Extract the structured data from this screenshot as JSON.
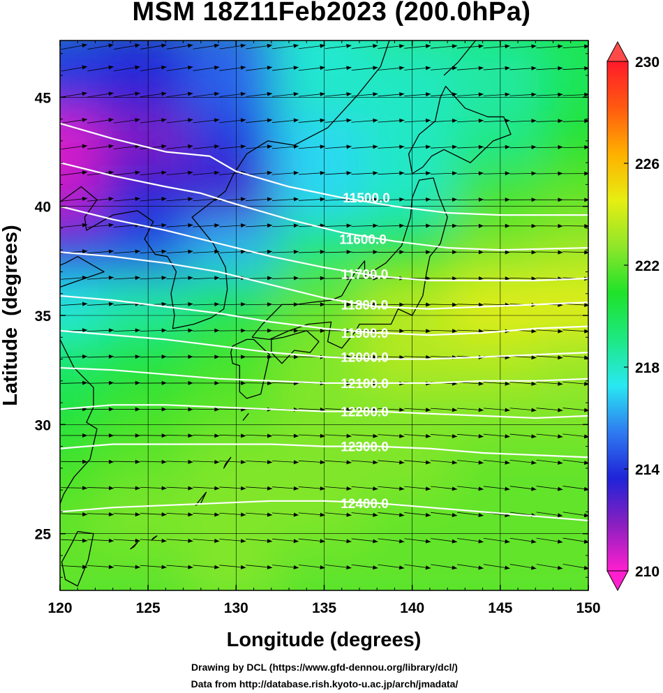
{
  "title": "MSM 18Z11Feb2023 (200.0hPa)",
  "credits": {
    "line1": "Drawing by DCL (https://www.gfd-dennou.org/library/dcl/)",
    "line2": "Data from http://database.rish.kyoto-u.ac.jp/arch/jmadata/"
  },
  "chart_data": {
    "type": "heatmap",
    "title": "MSM 18Z11Feb2023 (200.0hPa)",
    "xlabel": "Longitude (degrees)",
    "ylabel": "Latitude  (degrees)",
    "xlim": [
      120,
      150
    ],
    "ylim": [
      22.4,
      47.6
    ],
    "xticks": [
      {
        "value": 120,
        "label": "120"
      },
      {
        "value": 125,
        "label": "125"
      },
      {
        "value": 130,
        "label": "130"
      },
      {
        "value": 135,
        "label": "135"
      },
      {
        "value": 140,
        "label": "140"
      },
      {
        "value": 145,
        "label": "145"
      },
      {
        "value": 150,
        "label": "150"
      }
    ],
    "yticks": [
      {
        "value": 25,
        "label": "25"
      },
      {
        "value": 30,
        "label": "30"
      },
      {
        "value": 35,
        "label": "35"
      },
      {
        "value": 40,
        "label": "40"
      },
      {
        "value": 45,
        "label": "45"
      }
    ],
    "colorbar": {
      "range": [
        210,
        230
      ],
      "ticks": [
        {
          "value": 210,
          "label": "210"
        },
        {
          "value": 214,
          "label": "214"
        },
        {
          "value": 218,
          "label": "218"
        },
        {
          "value": 222,
          "label": "222"
        },
        {
          "value": 226,
          "label": "226"
        },
        {
          "value": 230,
          "label": "230"
        }
      ],
      "colors": [
        "#ff1fcf",
        "#8a1fc0",
        "#1f23d8",
        "#2f7bf0",
        "#29e8f2",
        "#1de882",
        "#1fe22a",
        "#8fe62a",
        "#e6ee12",
        "#ffb000",
        "#ff5a10",
        "#ff1a2a"
      ]
    },
    "shading_sample": {
      "lon": [
        120,
        125,
        130,
        135,
        140,
        145,
        150
      ],
      "lat": [
        47,
        45,
        42.5,
        40,
        37.5,
        35,
        32.5,
        30,
        27.5,
        25,
        23
      ],
      "values": [
        [
          214.5,
          214.0,
          215.0,
          217.5,
          218.5,
          219.0,
          220.0
        ],
        [
          214.0,
          213.5,
          215.0,
          218.0,
          218.0,
          218.5,
          220.0
        ],
        [
          210.5,
          212.0,
          214.0,
          217.0,
          218.0,
          219.0,
          221.0
        ],
        [
          211.0,
          213.5,
          213.0,
          217.0,
          218.0,
          221.5,
          222.0
        ],
        [
          214.0,
          214.5,
          216.5,
          219.5,
          221.0,
          222.5,
          223.0
        ],
        [
          217.5,
          218.5,
          220.0,
          222.0,
          223.5,
          224.5,
          224.5
        ],
        [
          219.5,
          220.5,
          221.5,
          222.5,
          223.5,
          223.5,
          223.0
        ],
        [
          220.5,
          221.5,
          222.0,
          222.5,
          222.5,
          222.5,
          222.5
        ],
        [
          221.5,
          222.0,
          222.5,
          222.5,
          222.5,
          222.0,
          222.0
        ],
        [
          222.0,
          222.5,
          222.5,
          222.5,
          222.0,
          222.0,
          222.0
        ],
        [
          222.0,
          222.0,
          222.5,
          222.0,
          222.0,
          222.0,
          222.0
        ]
      ]
    },
    "contours": [
      {
        "label": "11500.0",
        "label_lon": 137.4,
        "label_lat": 40.4,
        "lon": [
          120,
          123,
          126,
          128.5,
          130,
          133,
          136,
          139,
          142,
          145,
          150
        ],
        "lat": [
          43.8,
          43.1,
          42.5,
          42.3,
          41.6,
          40.9,
          40.4,
          40.0,
          39.7,
          39.6,
          39.6
        ]
      },
      {
        "label": "11600.0",
        "label_lon": 137.2,
        "label_lat": 38.5,
        "lon": [
          120,
          123,
          126,
          128,
          130,
          133,
          136,
          139,
          142,
          145,
          150
        ],
        "lat": [
          42.0,
          41.4,
          40.9,
          40.6,
          40.1,
          39.4,
          38.8,
          38.4,
          38.1,
          38.0,
          38.1
        ]
      },
      {
        "label": "11700.0",
        "label_lon": 137.3,
        "label_lat": 36.9,
        "lon": [
          120,
          123,
          126,
          129,
          132,
          135,
          138,
          141,
          144,
          147,
          150
        ],
        "lat": [
          40.0,
          39.4,
          38.9,
          38.3,
          37.7,
          37.2,
          36.8,
          36.6,
          36.6,
          36.6,
          36.7
        ]
      },
      {
        "label": "11800.0",
        "label_lon": 137.3,
        "label_lat": 35.5,
        "lon": [
          120,
          123,
          126,
          129,
          132,
          135,
          138,
          141,
          144,
          147,
          150
        ],
        "lat": [
          37.9,
          37.7,
          37.4,
          37.0,
          36.4,
          35.8,
          35.4,
          35.3,
          35.4,
          35.5,
          35.6
        ]
      },
      {
        "label": "11900.0",
        "label_lon": 137.3,
        "label_lat": 34.2,
        "lon": [
          120,
          123,
          126,
          129,
          132,
          135,
          138,
          141,
          144,
          147,
          150
        ],
        "lat": [
          35.9,
          35.7,
          35.4,
          35.1,
          34.7,
          34.4,
          34.2,
          34.1,
          34.2,
          34.4,
          34.5
        ]
      },
      {
        "label": "12000.0",
        "label_lon": 137.3,
        "label_lat": 33.1,
        "lon": [
          120,
          123,
          126,
          129,
          132,
          135,
          138,
          141,
          144,
          147,
          150
        ],
        "lat": [
          34.3,
          34.1,
          33.9,
          33.6,
          33.3,
          33.1,
          33.0,
          33.0,
          33.1,
          33.2,
          33.3
        ]
      },
      {
        "label": "12100.0",
        "label_lon": 137.3,
        "label_lat": 31.9,
        "lon": [
          120,
          123,
          126,
          129,
          132,
          135,
          138,
          141,
          144,
          147,
          150
        ],
        "lat": [
          32.6,
          32.5,
          32.3,
          32.1,
          32.0,
          31.9,
          31.9,
          31.9,
          32.0,
          32.0,
          32.1
        ]
      },
      {
        "label": "12200.0",
        "label_lon": 137.3,
        "label_lat": 30.6,
        "lon": [
          120,
          123,
          126,
          129,
          132,
          135,
          138,
          141,
          144,
          147,
          150
        ],
        "lat": [
          30.7,
          30.9,
          30.9,
          30.8,
          30.7,
          30.6,
          30.6,
          30.5,
          30.4,
          30.3,
          30.4
        ]
      },
      {
        "label": "12300.0",
        "label_lon": 137.3,
        "label_lat": 29.0,
        "lon": [
          120,
          123,
          126,
          129,
          132,
          135,
          138,
          141,
          144,
          147,
          150
        ],
        "lat": [
          28.9,
          29.1,
          29.1,
          29.1,
          29.1,
          29.0,
          29.0,
          28.9,
          28.7,
          28.6,
          28.5
        ]
      },
      {
        "label": "12400.0",
        "label_lon": 137.3,
        "label_lat": 26.4,
        "lon": [
          120,
          123,
          126,
          129,
          132,
          135,
          138,
          141,
          144,
          147,
          150
        ],
        "lat": [
          26.0,
          26.2,
          26.3,
          26.4,
          26.5,
          26.5,
          26.4,
          26.2,
          26.0,
          25.8,
          25.6
        ]
      }
    ],
    "wind_vectors": {
      "description_units": "arrow direction as u,v components (relative)",
      "lon_grid": [
        120.8,
        122.3,
        123.8,
        125.3,
        126.8,
        128.3,
        129.8,
        131.3,
        132.8,
        134.3,
        135.8,
        137.3,
        138.8,
        140.3,
        141.8,
        143.3,
        144.8,
        146.3,
        147.8,
        149.3
      ],
      "lat_grid": [
        23.5,
        24.7,
        25.9,
        27.1,
        28.3,
        29.5,
        30.7,
        31.9,
        33.1,
        34.3,
        35.5,
        36.7,
        37.9,
        39.1,
        40.3,
        41.5,
        42.7,
        43.9,
        45.1,
        46.3,
        47.3
      ]
    }
  }
}
